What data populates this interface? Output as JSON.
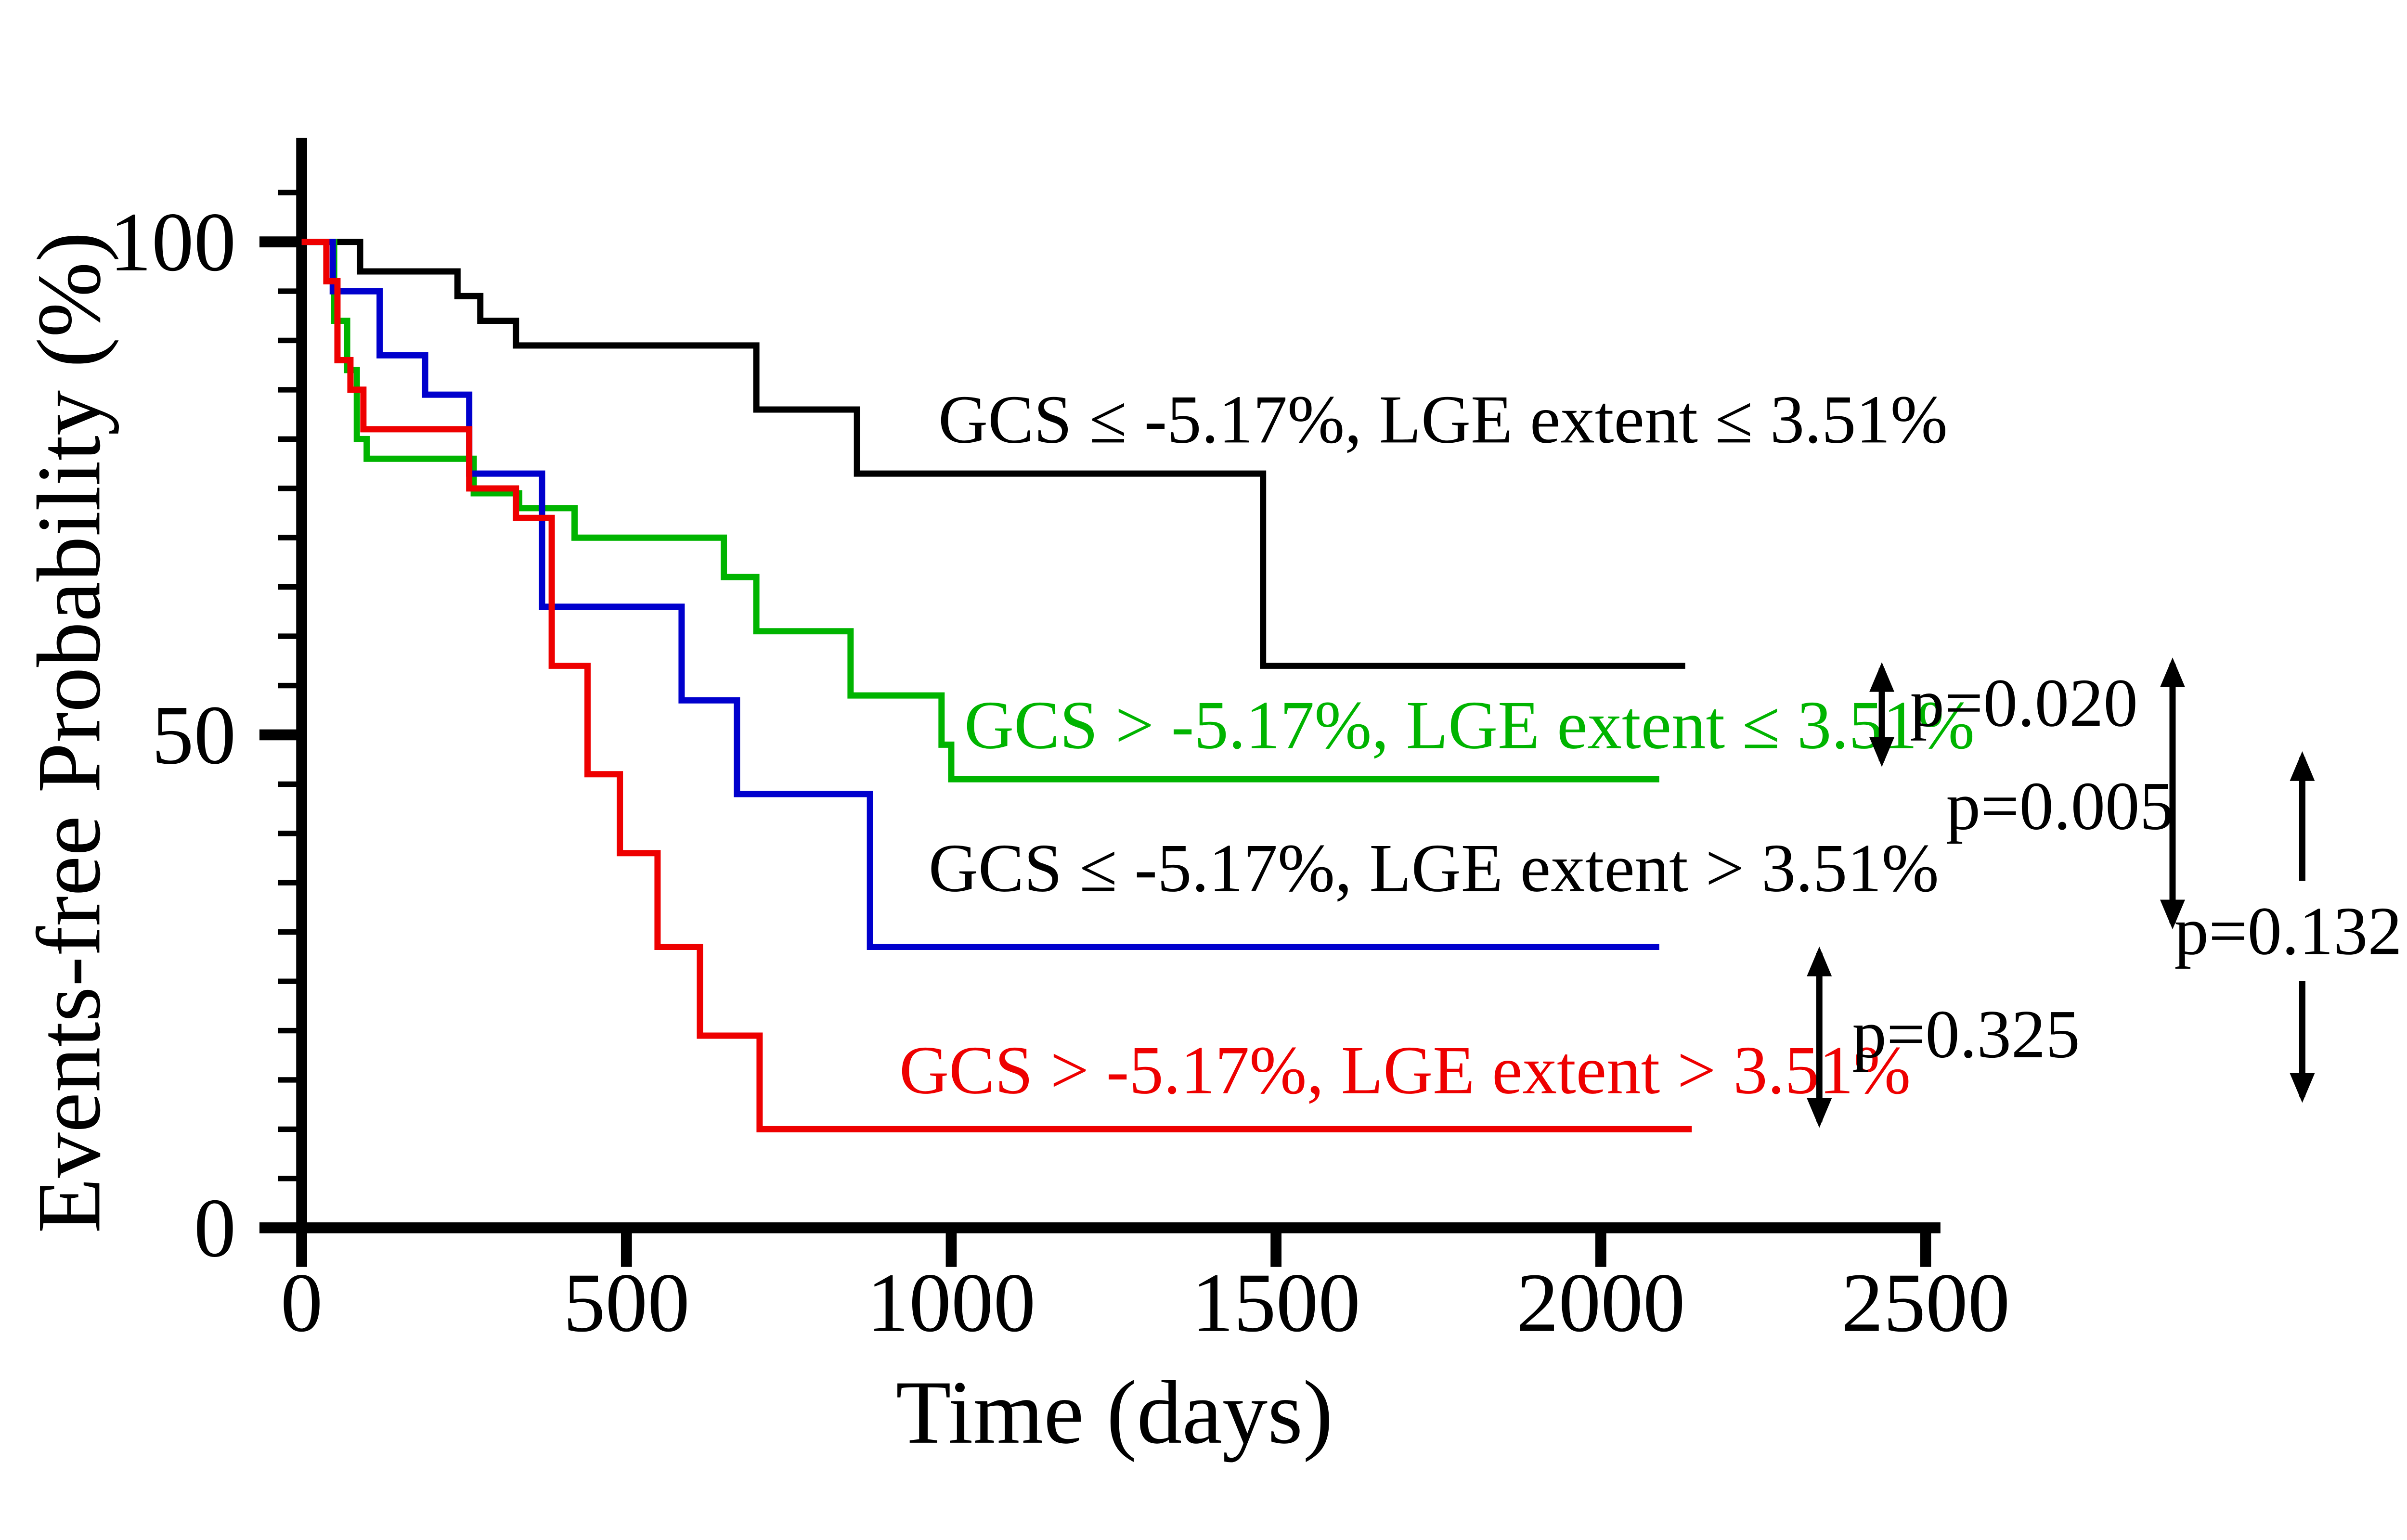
{
  "figure": {
    "background": "#ffffff"
  },
  "chart_data": {
    "type": "line",
    "subtype": "kaplan-meier-step-survival",
    "title": "",
    "xlabel": "Time (days)",
    "ylabel": "Events-free Probability (%)",
    "xlim": [
      0,
      2500
    ],
    "ylim": [
      0,
      100
    ],
    "x_ticks": [
      0,
      500,
      1000,
      1500,
      2000,
      2500
    ],
    "y_ticks": [
      0,
      50,
      100
    ],
    "y_minor_step": 5,
    "grid": false,
    "legend_position": "inline-curve-labels",
    "series": [
      {
        "id": "gcs-le-lge-le",
        "label": "GCS ≤ -5.17%, LGE extent ≤ 3.51%",
        "color": "#000000",
        "label_color": "#000000",
        "label_pos": {
          "t": 980,
          "v": 82
        },
        "steps": [
          [
            0,
            100
          ],
          [
            90,
            97
          ],
          [
            240,
            94.5
          ],
          [
            275,
            92
          ],
          [
            330,
            89.5
          ],
          [
            700,
            83
          ],
          [
            855,
            76.5
          ],
          [
            1480,
            57
          ],
          [
            2130,
            57
          ]
        ]
      },
      {
        "id": "gcs-gt-lge-le",
        "label": "GCS > -5.17%, LGE extent ≤ 3.51%",
        "color": "#00b400",
        "label_color": "#00b400",
        "label_pos": {
          "t": 1020,
          "v": 51
        },
        "steps": [
          [
            0,
            100
          ],
          [
            50,
            92
          ],
          [
            70,
            87
          ],
          [
            85,
            80
          ],
          [
            100,
            78
          ],
          [
            265,
            74.5
          ],
          [
            335,
            73
          ],
          [
            420,
            70
          ],
          [
            650,
            66
          ],
          [
            700,
            60.5
          ],
          [
            845,
            54
          ],
          [
            985,
            49
          ],
          [
            1000,
            45.5
          ],
          [
            2090,
            45.5
          ]
        ]
      },
      {
        "id": "gcs-le-lge-gt",
        "label": "GCS ≤ -5.17%, LGE extent > 3.51%",
        "color": "#0000cd",
        "label_color": "#000000",
        "label_pos": {
          "t": 965,
          "v": 36.5
        },
        "steps": [
          [
            0,
            100
          ],
          [
            48,
            95
          ],
          [
            120,
            88.5
          ],
          [
            190,
            84.5
          ],
          [
            258,
            76.5
          ],
          [
            370,
            63
          ],
          [
            585,
            53.5
          ],
          [
            670,
            44
          ],
          [
            875,
            28.5
          ],
          [
            2090,
            28.5
          ]
        ]
      },
      {
        "id": "gcs-gt-lge-gt",
        "label": "GCS > -5.17%, LGE extent > 3.51%",
        "color": "#ee0000",
        "label_color": "#ee0000",
        "label_pos": {
          "t": 920,
          "v": 16
        },
        "steps": [
          [
            0,
            100
          ],
          [
            38,
            96
          ],
          [
            55,
            88
          ],
          [
            75,
            85
          ],
          [
            95,
            81
          ],
          [
            258,
            75
          ],
          [
            330,
            72
          ],
          [
            385,
            57
          ],
          [
            440,
            46
          ],
          [
            490,
            38
          ],
          [
            548,
            28.5
          ],
          [
            613,
            19.5
          ],
          [
            705,
            10
          ],
          [
            2140,
            10
          ]
        ]
      }
    ],
    "annotations": [
      {
        "id": "p-black-vs-green",
        "text": "p=0.020",
        "color": "#000000",
        "x": 1222,
        "y": 412,
        "anchor": "start",
        "arrows": [
          {
            "x": 1204,
            "y1": 386,
            "y2": 453,
            "heads": "both"
          }
        ]
      },
      {
        "id": "p-black-vs-blue",
        "text": "p=0.005",
        "color": "#000000",
        "x": 1318,
        "y": 478,
        "anchor": "middle",
        "arrows": [
          {
            "x": 1390,
            "y1": 383,
            "y2": 557,
            "heads": "both"
          }
        ]
      },
      {
        "id": "p-green-vs-red",
        "text": "p=0.132",
        "color": "#000000",
        "x": 1464,
        "y": 558,
        "anchor": "middle",
        "arrows": [
          {
            "x": 1473,
            "y1": 443,
            "y2": 526,
            "heads": "top"
          },
          {
            "x": 1473,
            "y1": 590,
            "y2": 668,
            "heads": "bottom"
          }
        ]
      },
      {
        "id": "p-blue-vs-red",
        "text": "p=0.325",
        "color": "#000000",
        "x": 1185,
        "y": 624,
        "anchor": "start",
        "arrows": [
          {
            "x": 1164,
            "y1": 568,
            "y2": 684,
            "heads": "both"
          }
        ]
      }
    ]
  }
}
